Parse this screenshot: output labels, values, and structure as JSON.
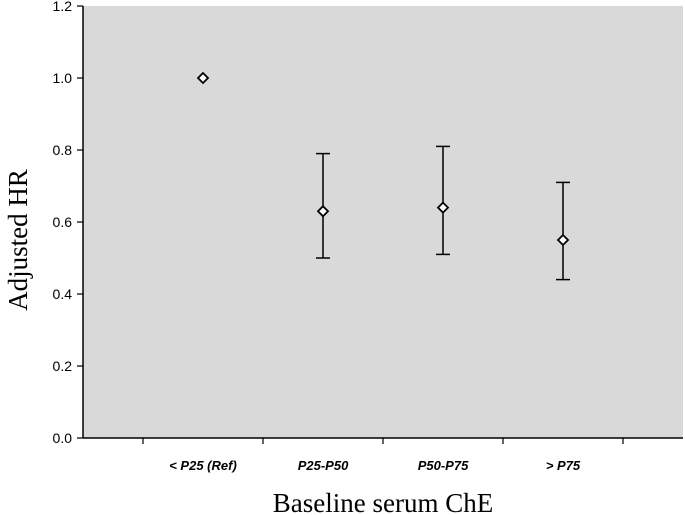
{
  "chart_data": {
    "type": "scatter",
    "title": "",
    "xlabel": "Baseline serum ChE",
    "ylabel": "Adjusted HR",
    "categories": [
      "< P25 (Ref)",
      "P25-P50",
      "P50-P75",
      "> P75"
    ],
    "points": [
      {
        "category": "< P25 (Ref)",
        "value": 1.0,
        "lower": null,
        "upper": null
      },
      {
        "category": "P25-P50",
        "value": 0.63,
        "lower": 0.5,
        "upper": 0.79
      },
      {
        "category": "P50-P75",
        "value": 0.64,
        "lower": 0.51,
        "upper": 0.81
      },
      {
        "category": "> P75",
        "value": 0.55,
        "lower": 0.44,
        "upper": 0.71
      }
    ],
    "ylim": [
      0,
      1.2
    ],
    "y_ticks": [
      "0.0",
      "0.2",
      "0.4",
      "0.6",
      "0.8",
      "1.0",
      "1.2"
    ],
    "grid": false,
    "colors": {
      "plot_background": "#d9d9d9",
      "marker_fill": "#ffffff",
      "marker_stroke": "#000000",
      "axis": "#000000"
    },
    "marker_shape": "diamond"
  }
}
